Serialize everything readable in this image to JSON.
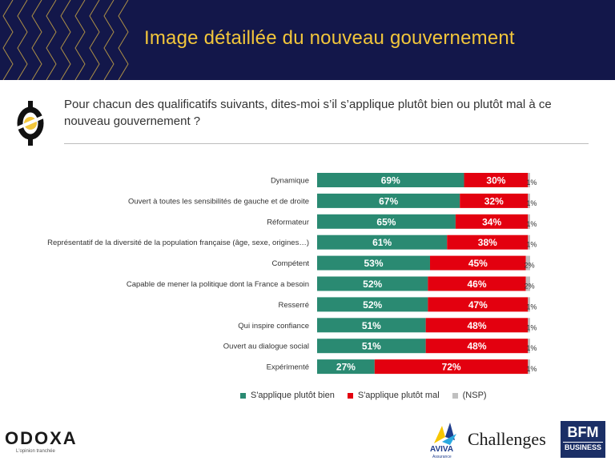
{
  "header": {
    "title": "Image détaillée du nouveau gouvernement"
  },
  "question": "Pour chacun des qualificatifs suivants, dites-moi s’il s’applique plutôt bien ou plutôt mal à ce nouveau gouvernement ?",
  "colors": {
    "header_bg": "#13174a",
    "title": "#f2c63b",
    "bien": "#2a8a72",
    "mal": "#e3000f",
    "nsp": "#c0c0c0"
  },
  "chart_data": {
    "type": "bar",
    "orientation": "horizontal",
    "stacked": true,
    "xlim": [
      0,
      100
    ],
    "categories": [
      "Dynamique",
      "Ouvert à toutes les sensibilités de gauche et de droite",
      "Réformateur",
      "Représentatif de la diversité de la population française (âge, sexe, origines…)",
      "Compétent",
      "Capable de mener la politique dont la France a besoin",
      "Resserré",
      "Qui inspire confiance",
      "Ouvert au dialogue social",
      "Expérimenté"
    ],
    "series": [
      {
        "name": "S'applique plutôt bien",
        "color": "#2a8a72",
        "values": [
          69,
          67,
          65,
          61,
          53,
          52,
          52,
          51,
          51,
          27
        ]
      },
      {
        "name": "S'applique plutôt mal",
        "color": "#e3000f",
        "values": [
          30,
          32,
          34,
          38,
          45,
          46,
          47,
          48,
          48,
          72
        ]
      },
      {
        "name": "(NSP)",
        "color": "#c0c0c0",
        "values": [
          1,
          1,
          1,
          1,
          2,
          2,
          1,
          1,
          1,
          1
        ]
      }
    ],
    "value_suffix": "%",
    "legend_position": "bottom",
    "grid": false
  },
  "footer": {
    "odoxa": "ODOXA",
    "odoxa_tagline": "L'opinion tranchée",
    "aviva": "AVIVA",
    "aviva_sub": "Assurance",
    "challenges": "Challenges",
    "bfm_top": "BFM",
    "bfm_bottom": "BUSINESS"
  }
}
